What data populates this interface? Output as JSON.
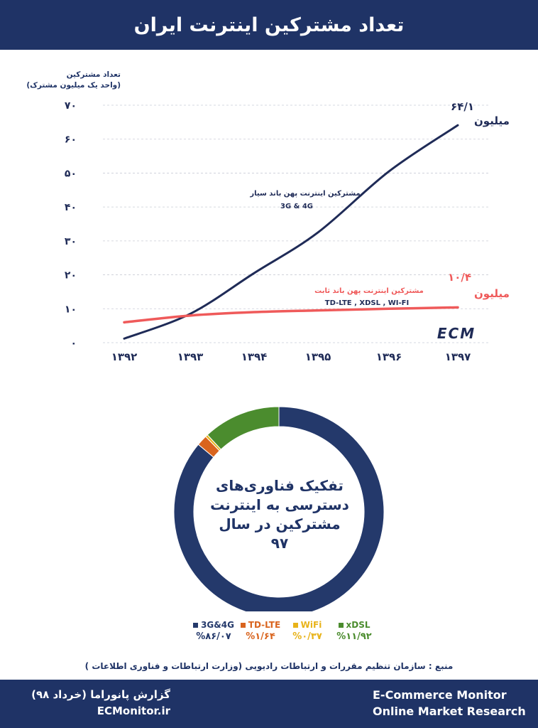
{
  "header": {
    "title": "تعداد مشترکین اینترنت ایران"
  },
  "line_chart_labels": {
    "ylabel_line1": "تعداد مشترکین",
    "ylabel_line2": "(واحد یک میلیون مشترک)",
    "mobile_label_line1": "مشترکین اینترنت پهن باند سیار",
    "mobile_label_line2": "3G & 4G",
    "fixed_label_line1": "مشترکین اینترنت پهن باند ثابت",
    "fixed_label_line2": "TD-LTE , XDSL , WI-FI",
    "mobile_end_value": "۶۴/۱",
    "mobile_end_unit": "میلیون",
    "fixed_end_value": "۱۰/۴",
    "fixed_end_unit": "میلیون",
    "logo_text": "ECM"
  },
  "chart_data": [
    {
      "type": "line",
      "x": [
        "۱۳۹۲",
        "۱۳۹۳",
        "۱۳۹۴",
        "۱۳۹۵",
        "۱۳۹۶",
        "۱۳۹۷"
      ],
      "y_ticks": [
        "۰",
        "۱۰",
        "۲۰",
        "۳۰",
        "۴۰",
        "۵۰",
        "۶۰",
        "۷۰"
      ],
      "ylim": [
        0,
        70
      ],
      "grid": true,
      "series": [
        {
          "name": "مشترکین اینترنت پهن باند سیار",
          "color": "#1f2b57",
          "values": [
            1.2,
            8.5,
            20.5,
            32.5,
            50.5,
            64.1
          ]
        },
        {
          "name": "مشترکین اینترنت پهن باند ثابت",
          "color": "#ef5a5a",
          "values": [
            6,
            8,
            9,
            9.5,
            10,
            10.4
          ]
        }
      ]
    },
    {
      "type": "pie",
      "center_title": [
        "تفکیک فناوری‌های",
        "دسترسی به اینترنت",
        "مشترکین در سال ۹۷"
      ],
      "slices": [
        {
          "name": "3G&4G",
          "value": 86.07,
          "label": "%۸۶/۰۷",
          "color": "#24396b"
        },
        {
          "name": "TD-LTE",
          "value": 1.64,
          "label": "%۱/۶۴",
          "color": "#d9641e"
        },
        {
          "name": "WiFi",
          "value": 0.37,
          "label": "%۰/۳۷",
          "color": "#e8b31a"
        },
        {
          "name": "xDSL",
          "value": 11.92,
          "label": "%۱۱/۹۲",
          "color": "#4b8c2e"
        }
      ]
    }
  ],
  "source": "منبع : سازمان تنظیم مقررات و ارتباطات رادیویی (وزارت ارتباطات و فناوری اطلاعات )",
  "footer": {
    "right_line1": "گزارش پانوراما (خرداد ۹۸)",
    "right_line2": "ECMonitor.ir",
    "left_line1": "E-Commerce Monitor",
    "left_line2": "Online Market Research"
  }
}
